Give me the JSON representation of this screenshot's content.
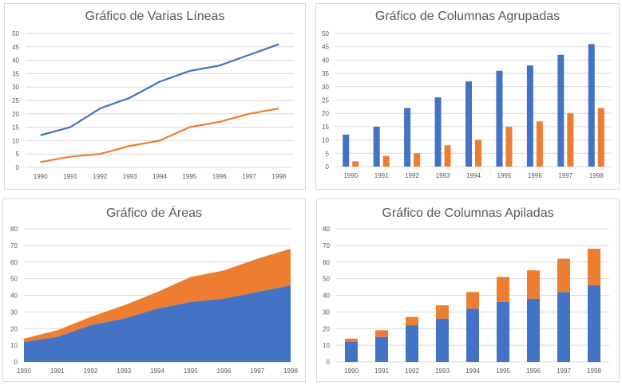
{
  "colors": {
    "blue": "#4472C4",
    "orange": "#ED7D31",
    "grid": "#d9d9d9",
    "axis": "#595959"
  },
  "chart_data": [
    {
      "type": "line",
      "title": "Gráfico de Varias Líneas",
      "categories": [
        "1990",
        "1991",
        "1992",
        "1993",
        "1994",
        "1995",
        "1996",
        "1997",
        "1998"
      ],
      "series": [
        {
          "values": [
            12,
            15,
            22,
            26,
            32,
            36,
            38,
            42,
            46
          ]
        },
        {
          "values": [
            2,
            4,
            5,
            8,
            10,
            15,
            17,
            20,
            22
          ]
        }
      ],
      "ylim": [
        0,
        50
      ],
      "yticks": [
        0,
        5,
        10,
        15,
        20,
        25,
        30,
        35,
        40,
        45,
        50
      ],
      "grid": true
    },
    {
      "type": "bar",
      "title": "Gráfico de Columnas Agrupadas",
      "categories": [
        "1990",
        "1991",
        "1992",
        "1993",
        "1994",
        "1995",
        "1996",
        "1997",
        "1998"
      ],
      "series": [
        {
          "values": [
            12,
            15,
            22,
            26,
            32,
            36,
            38,
            42,
            46
          ]
        },
        {
          "values": [
            2,
            4,
            5,
            8,
            10,
            15,
            17,
            20,
            22
          ]
        }
      ],
      "ylim": [
        0,
        50
      ],
      "yticks": [
        0,
        5,
        10,
        15,
        20,
        25,
        30,
        35,
        40,
        45,
        50
      ],
      "grid": true
    },
    {
      "type": "area",
      "stacked": true,
      "title": "Gráfico de Áreas",
      "categories": [
        "1990",
        "1991",
        "1992",
        "1993",
        "1994",
        "1995",
        "1996",
        "1997",
        "1998"
      ],
      "series": [
        {
          "values": [
            12,
            15,
            22,
            26,
            32,
            36,
            38,
            42,
            46
          ]
        },
        {
          "values": [
            2,
            4,
            5,
            8,
            10,
            15,
            17,
            20,
            22
          ]
        }
      ],
      "ylim": [
        0,
        80
      ],
      "yticks": [
        0,
        10,
        20,
        30,
        40,
        50,
        60,
        70,
        80
      ],
      "grid": true
    },
    {
      "type": "bar",
      "stacked": true,
      "title": "Gráfico de Columnas Apiladas",
      "categories": [
        "1990",
        "1991",
        "1992",
        "1993",
        "1994",
        "1995",
        "1996",
        "1997",
        "1998"
      ],
      "series": [
        {
          "values": [
            12,
            15,
            22,
            26,
            32,
            36,
            38,
            42,
            46
          ]
        },
        {
          "values": [
            2,
            4,
            5,
            8,
            10,
            15,
            17,
            20,
            22
          ]
        }
      ],
      "ylim": [
        0,
        80
      ],
      "yticks": [
        0,
        10,
        20,
        30,
        40,
        50,
        60,
        70,
        80
      ],
      "grid": true
    }
  ]
}
